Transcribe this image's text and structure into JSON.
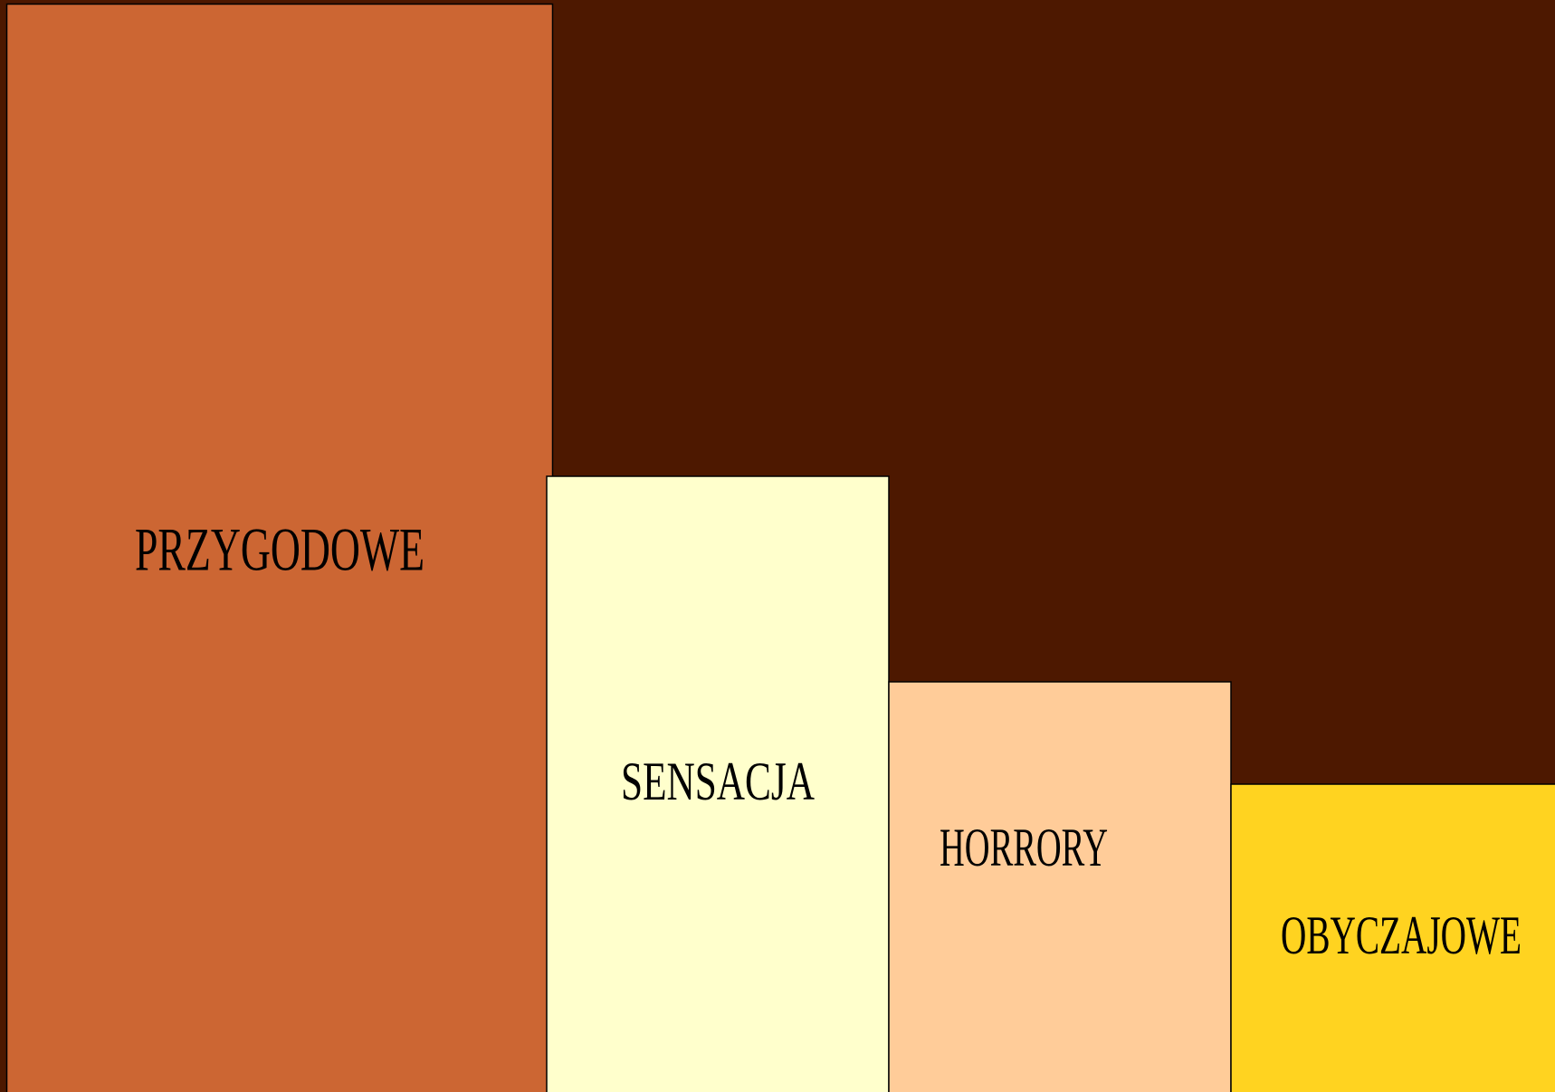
{
  "blocks": [
    {
      "label": "PRZYGODOWE"
    },
    {
      "label": "SENSACJA"
    },
    {
      "label": "HORRORY"
    },
    {
      "label": "OBYCZAJOWE"
    }
  ]
}
